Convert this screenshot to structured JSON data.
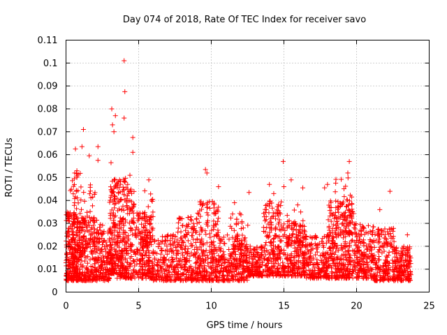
{
  "chart_data": {
    "type": "scatter",
    "title": "Day 074 of 2018, Rate Of TEC Index for receiver savo",
    "xlabel": "GPS time / hours",
    "ylabel": "ROTI / TECUs",
    "xlim": [
      0,
      25
    ],
    "ylim": [
      0,
      0.11
    ],
    "xticks": [
      "0",
      "5",
      "10",
      "15",
      "20",
      "25"
    ],
    "yticks": [
      "0",
      "0.01",
      "0.02",
      "0.03",
      "0.04",
      "0.05",
      "0.06",
      "0.07",
      "0.08",
      "0.09",
      "0.1",
      "0.11"
    ],
    "grid": true,
    "marker": "plus",
    "series_color": "#ff0000",
    "data_range": [
      0,
      23.75
    ],
    "highlights": [
      {
        "x": 4.0,
        "y": 0.101
      },
      {
        "x": 4.05,
        "y": 0.0875
      },
      {
        "x": 3.15,
        "y": 0.08
      },
      {
        "x": 3.4,
        "y": 0.077
      },
      {
        "x": 4.0,
        "y": 0.076
      },
      {
        "x": 3.2,
        "y": 0.073
      },
      {
        "x": 1.2,
        "y": 0.071
      },
      {
        "x": 3.3,
        "y": 0.07
      },
      {
        "x": 4.6,
        "y": 0.0675
      },
      {
        "x": 2.2,
        "y": 0.0635
      },
      {
        "x": 0.65,
        "y": 0.0625
      },
      {
        "x": 1.1,
        "y": 0.0635
      },
      {
        "x": 4.6,
        "y": 0.061
      },
      {
        "x": 1.6,
        "y": 0.0595
      },
      {
        "x": 2.2,
        "y": 0.0575
      },
      {
        "x": 3.1,
        "y": 0.0565
      },
      {
        "x": 14.95,
        "y": 0.057
      },
      {
        "x": 19.5,
        "y": 0.057
      },
      {
        "x": 9.6,
        "y": 0.0535
      },
      {
        "x": 9.7,
        "y": 0.052
      },
      {
        "x": 0.6,
        "y": 0.052
      },
      {
        "x": 0.75,
        "y": 0.053
      },
      {
        "x": 19.4,
        "y": 0.052
      },
      {
        "x": 4.4,
        "y": 0.051
      },
      {
        "x": 15.5,
        "y": 0.049
      },
      {
        "x": 5.7,
        "y": 0.049
      },
      {
        "x": 14.0,
        "y": 0.047
      },
      {
        "x": 18.0,
        "y": 0.047
      },
      {
        "x": 10.5,
        "y": 0.046
      },
      {
        "x": 15.0,
        "y": 0.046
      },
      {
        "x": 16.3,
        "y": 0.0455
      },
      {
        "x": 12.6,
        "y": 0.0435
      },
      {
        "x": 22.3,
        "y": 0.044
      },
      {
        "x": 17.8,
        "y": 0.0455
      },
      {
        "x": 14.3,
        "y": 0.043
      },
      {
        "x": 11.6,
        "y": 0.039
      },
      {
        "x": 21.6,
        "y": 0.036
      },
      {
        "x": 23.5,
        "y": 0.025
      }
    ],
    "clusters": [
      {
        "x": [
          0.0,
          1.0
        ],
        "y": [
          0.005,
          0.035
        ],
        "n": 260
      },
      {
        "x": [
          0.3,
          1.0
        ],
        "y": [
          0.015,
          0.052
        ],
        "n": 60
      },
      {
        "x": [
          1.0,
          2.2
        ],
        "y": [
          0.005,
          0.033
        ],
        "n": 200
      },
      {
        "x": [
          1.0,
          2.0
        ],
        "y": [
          0.02,
          0.05
        ],
        "n": 40
      },
      {
        "x": [
          2.2,
          3.0
        ],
        "y": [
          0.005,
          0.03
        ],
        "n": 120
      },
      {
        "x": [
          3.0,
          3.5
        ],
        "y": [
          0.008,
          0.05
        ],
        "n": 140
      },
      {
        "x": [
          3.5,
          4.7
        ],
        "y": [
          0.006,
          0.05
        ],
        "n": 260
      },
      {
        "x": [
          4.7,
          6.0
        ],
        "y": [
          0.006,
          0.035
        ],
        "n": 200
      },
      {
        "x": [
          5.2,
          6.0
        ],
        "y": [
          0.02,
          0.045
        ],
        "n": 30
      },
      {
        "x": [
          6.0,
          7.7
        ],
        "y": [
          0.005,
          0.025
        ],
        "n": 180
      },
      {
        "x": [
          7.7,
          9.0
        ],
        "y": [
          0.005,
          0.033
        ],
        "n": 180
      },
      {
        "x": [
          9.0,
          10.5
        ],
        "y": [
          0.005,
          0.04
        ],
        "n": 240
      },
      {
        "x": [
          10.5,
          12.5
        ],
        "y": [
          0.005,
          0.025
        ],
        "n": 220
      },
      {
        "x": [
          11.2,
          12.6
        ],
        "y": [
          0.01,
          0.035
        ],
        "n": 60
      },
      {
        "x": [
          12.5,
          13.6
        ],
        "y": [
          0.007,
          0.02
        ],
        "n": 140
      },
      {
        "x": [
          13.6,
          15.0
        ],
        "y": [
          0.007,
          0.04
        ],
        "n": 220
      },
      {
        "x": [
          15.0,
          16.5
        ],
        "y": [
          0.007,
          0.03
        ],
        "n": 200
      },
      {
        "x": [
          15.2,
          16.4
        ],
        "y": [
          0.02,
          0.04
        ],
        "n": 40
      },
      {
        "x": [
          16.5,
          18.0
        ],
        "y": [
          0.006,
          0.025
        ],
        "n": 180
      },
      {
        "x": [
          18.0,
          19.8
        ],
        "y": [
          0.006,
          0.04
        ],
        "n": 280
      },
      {
        "x": [
          18.5,
          19.8
        ],
        "y": [
          0.025,
          0.05
        ],
        "n": 60
      },
      {
        "x": [
          19.8,
          21.2
        ],
        "y": [
          0.006,
          0.03
        ],
        "n": 200
      },
      {
        "x": [
          21.2,
          22.6
        ],
        "y": [
          0.005,
          0.028
        ],
        "n": 180
      },
      {
        "x": [
          22.6,
          23.75
        ],
        "y": [
          0.005,
          0.02
        ],
        "n": 160
      }
    ]
  }
}
